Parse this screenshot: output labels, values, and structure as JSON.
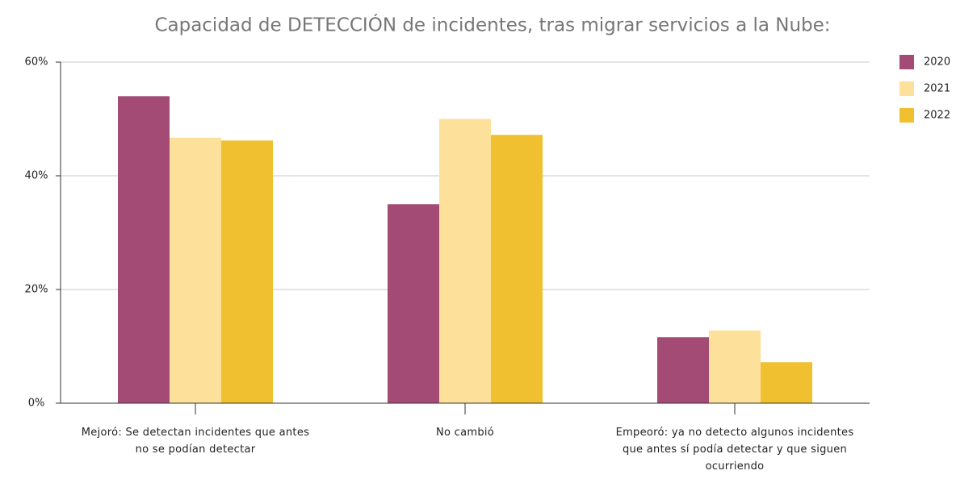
{
  "chart_data": {
    "type": "bar",
    "title": "Capacidad de DETECCIÓN de incidentes, tras migrar servicios a la Nube:",
    "categories": [
      "Mejoró: Se detectan incidentes que antes no se podían detectar",
      "No cambió",
      "Empeoró: ya no detecto algunos incidentes que antes sí podía detectar y que siguen ocurriendo"
    ],
    "series": [
      {
        "name": "2020",
        "color": "#a34a75",
        "values": [
          54,
          35,
          11.6
        ]
      },
      {
        "name": "2021",
        "color": "#fde19a",
        "values": [
          46.7,
          50,
          12.8
        ]
      },
      {
        "name": "2022",
        "color": "#f0c030",
        "values": [
          46.2,
          47.2,
          7.2
        ]
      }
    ],
    "ylim": [
      0,
      60
    ],
    "yticks": [
      {
        "value": 0,
        "label": "0%"
      },
      {
        "value": 20,
        "label": "20%"
      },
      {
        "value": 40,
        "label": "40%"
      },
      {
        "value": 60,
        "label": "60%"
      }
    ],
    "grid": true,
    "legend": "right"
  }
}
